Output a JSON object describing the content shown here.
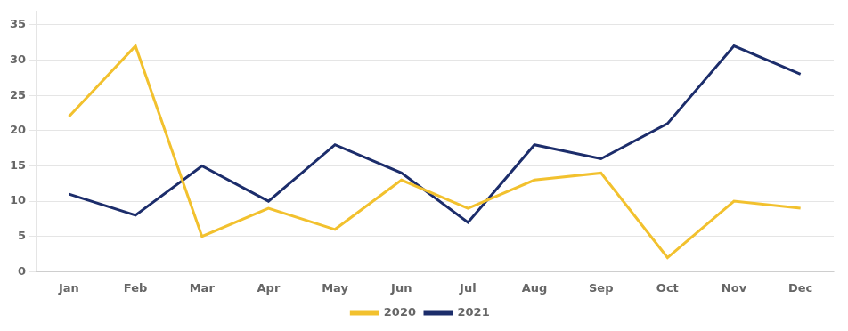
{
  "chart_data": {
    "type": "line",
    "categories": [
      "Jan",
      "Feb",
      "Mar",
      "Apr",
      "May",
      "Jun",
      "Jul",
      "Aug",
      "Sep",
      "Oct",
      "Nov",
      "Dec"
    ],
    "series": [
      {
        "name": "2020",
        "color": "#F2C12E",
        "values": [
          22,
          32,
          5,
          9,
          6,
          13,
          9,
          13,
          14,
          2,
          10,
          9
        ]
      },
      {
        "name": "2021",
        "color": "#1C2D6B",
        "values": [
          11,
          8,
          15,
          10,
          18,
          14,
          7,
          18,
          16,
          21,
          32,
          28
        ]
      }
    ],
    "ylim": [
      0,
      37
    ],
    "yticks": [
      0,
      5,
      10,
      15,
      20,
      25,
      30,
      35
    ],
    "grid": "y",
    "legend": "bottom"
  }
}
